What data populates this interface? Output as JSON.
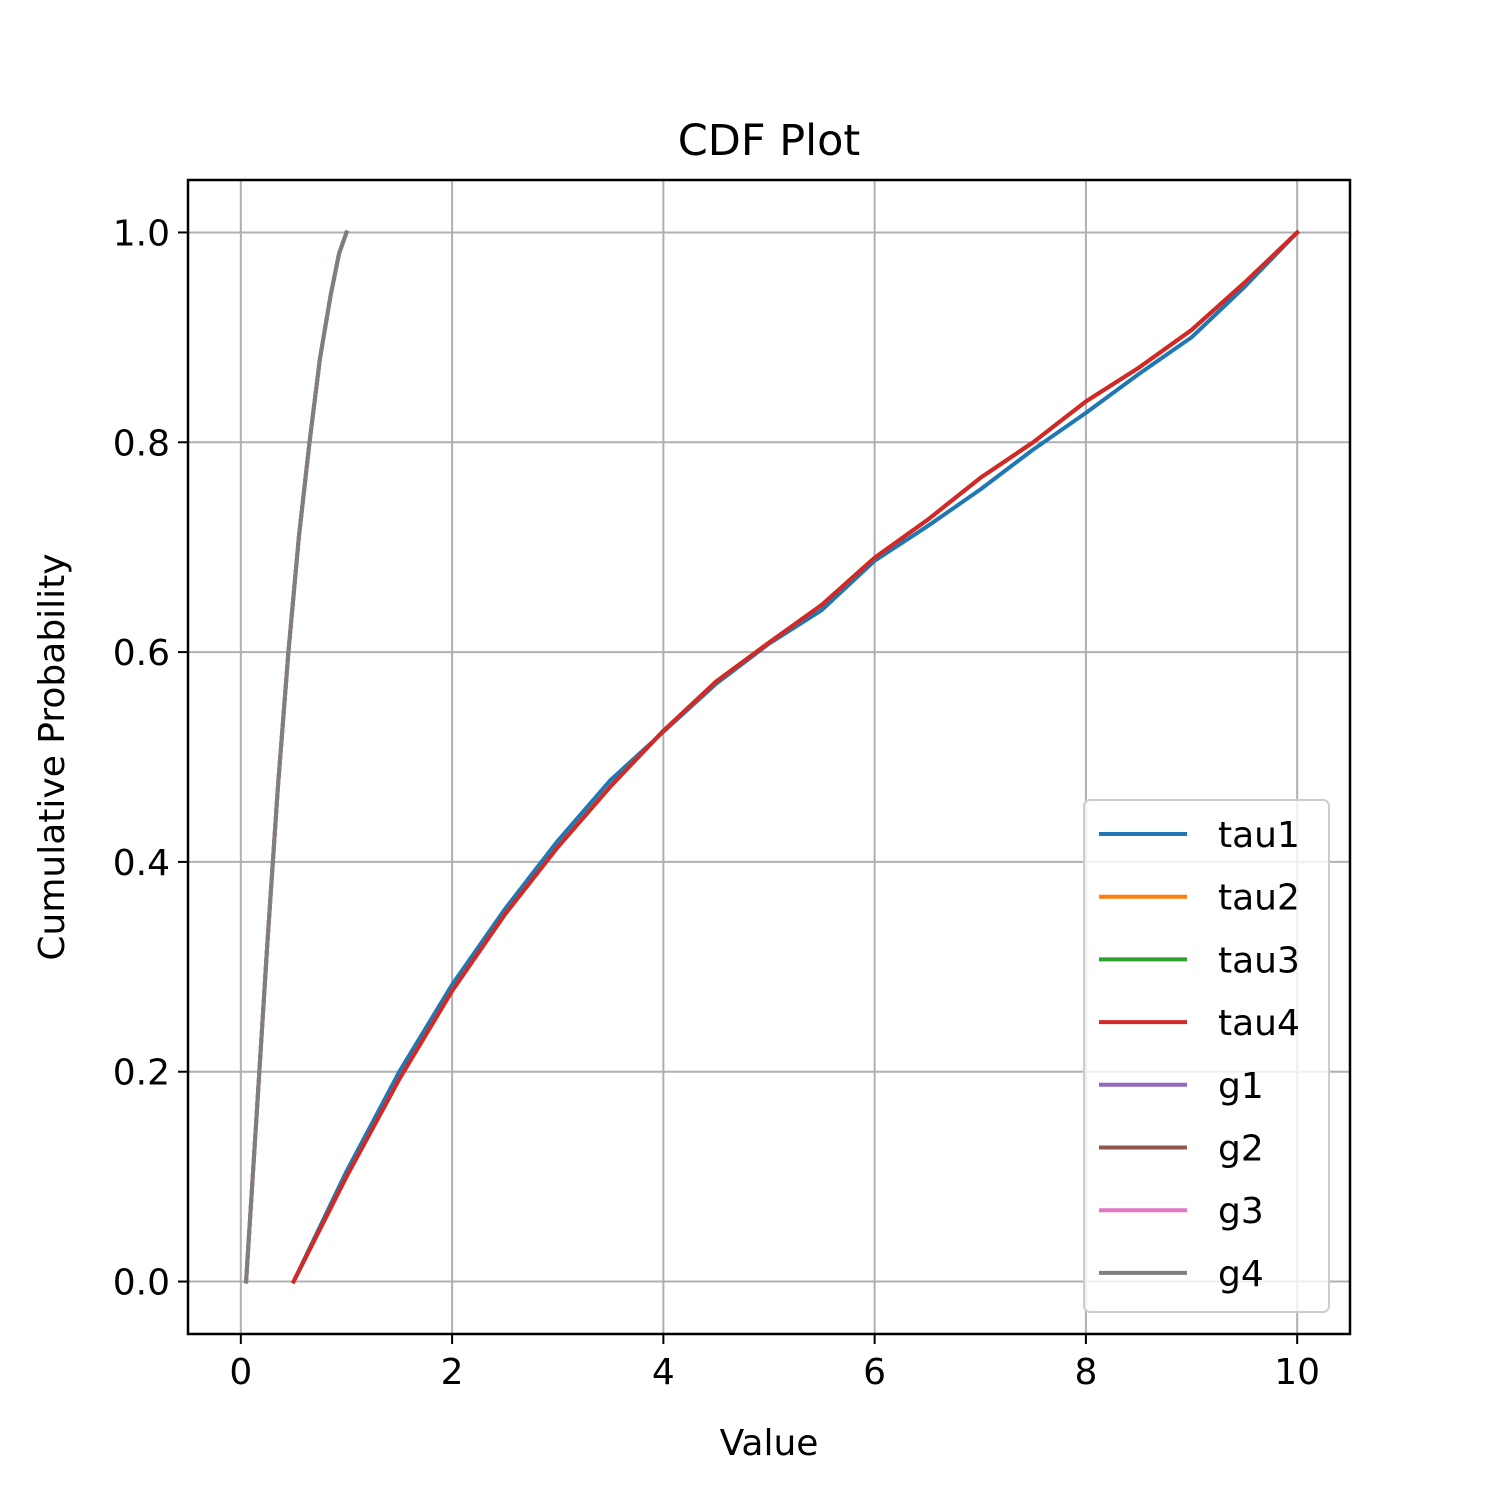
{
  "chart_data": {
    "type": "line",
    "title": "CDF Plot",
    "xlabel": "Value",
    "ylabel": "Cumulative Probability",
    "xlim": [
      -0.5,
      10.5
    ],
    "ylim": [
      -0.05,
      1.05
    ],
    "xticks": [
      0,
      2,
      4,
      6,
      8,
      10
    ],
    "yticks": [
      0.0,
      0.2,
      0.4,
      0.6,
      0.8,
      1.0
    ],
    "xtick_labels": [
      "0",
      "2",
      "4",
      "6",
      "8",
      "10"
    ],
    "ytick_labels": [
      "0.0",
      "0.2",
      "0.4",
      "0.6",
      "0.8",
      "1.0"
    ],
    "grid": true,
    "legend_position": "lower-right",
    "series": [
      {
        "name": "tau1",
        "color": "#1f77b4",
        "x": [
          0.5,
          1.0,
          1.5,
          2.0,
          2.5,
          3.0,
          3.5,
          4.0,
          4.5,
          5.0,
          5.5,
          6.0,
          6.5,
          7.0,
          7.5,
          8.0,
          8.5,
          9.0,
          9.5,
          10.0
        ],
        "y": [
          0.0,
          0.105,
          0.2,
          0.283,
          0.355,
          0.42,
          0.478,
          0.524,
          0.57,
          0.608,
          0.64,
          0.687,
          0.72,
          0.755,
          0.793,
          0.828,
          0.865,
          0.9,
          0.948,
          1.0
        ]
      },
      {
        "name": "tau2",
        "color": "#ff7f0e",
        "x": [
          0.5,
          1.0,
          1.5,
          2.0,
          2.5,
          3.0,
          3.5,
          4.0,
          4.5,
          5.0,
          5.5,
          6.0,
          6.5,
          7.0,
          7.5,
          8.0,
          8.5,
          9.0,
          9.5,
          10.0
        ],
        "y": [
          0.0,
          0.1,
          0.193,
          0.277,
          0.35,
          0.414,
          0.472,
          0.525,
          0.572,
          0.609,
          0.645,
          0.69,
          0.726,
          0.766,
          0.8,
          0.839,
          0.871,
          0.907,
          0.952,
          1.0
        ]
      },
      {
        "name": "tau3",
        "color": "#2ca02c",
        "x": [
          0.5,
          1.0,
          1.5,
          2.0,
          2.5,
          3.0,
          3.5,
          4.0,
          4.5,
          5.0,
          5.5,
          6.0,
          6.5,
          7.0,
          7.5,
          8.0,
          8.5,
          9.0,
          9.5,
          10.0
        ],
        "y": [
          0.0,
          0.1,
          0.193,
          0.277,
          0.35,
          0.414,
          0.472,
          0.525,
          0.572,
          0.609,
          0.645,
          0.69,
          0.726,
          0.766,
          0.8,
          0.839,
          0.871,
          0.907,
          0.952,
          1.0
        ]
      },
      {
        "name": "tau4",
        "color": "#d62728",
        "x": [
          0.5,
          1.0,
          1.5,
          2.0,
          2.5,
          3.0,
          3.5,
          4.0,
          4.5,
          5.0,
          5.5,
          6.0,
          6.5,
          7.0,
          7.5,
          8.0,
          8.5,
          9.0,
          9.5,
          10.0
        ],
        "y": [
          0.0,
          0.1,
          0.193,
          0.277,
          0.35,
          0.414,
          0.472,
          0.525,
          0.572,
          0.609,
          0.645,
          0.69,
          0.726,
          0.766,
          0.8,
          0.839,
          0.871,
          0.907,
          0.952,
          1.0
        ]
      },
      {
        "name": "g1",
        "color": "#9467bd",
        "x": [
          0.05,
          0.15,
          0.25,
          0.35,
          0.45,
          0.55,
          0.65,
          0.75,
          0.85,
          0.93,
          1.0
        ],
        "y": [
          0.0,
          0.16,
          0.32,
          0.47,
          0.6,
          0.71,
          0.8,
          0.88,
          0.94,
          0.98,
          1.0
        ]
      },
      {
        "name": "g2",
        "color": "#8c564b",
        "x": [
          0.05,
          0.15,
          0.25,
          0.35,
          0.45,
          0.55,
          0.65,
          0.75,
          0.85,
          0.93,
          1.0
        ],
        "y": [
          0.0,
          0.16,
          0.32,
          0.47,
          0.6,
          0.71,
          0.8,
          0.88,
          0.94,
          0.98,
          1.0
        ]
      },
      {
        "name": "g3",
        "color": "#e377c2",
        "x": [
          0.05,
          0.15,
          0.25,
          0.35,
          0.45,
          0.55,
          0.65,
          0.75,
          0.85,
          0.93,
          1.0
        ],
        "y": [
          0.0,
          0.16,
          0.32,
          0.47,
          0.6,
          0.71,
          0.8,
          0.88,
          0.94,
          0.98,
          1.0
        ]
      },
      {
        "name": "g4",
        "color": "#7f7f7f",
        "x": [
          0.05,
          0.15,
          0.25,
          0.35,
          0.45,
          0.55,
          0.65,
          0.75,
          0.85,
          0.93,
          1.0
        ],
        "y": [
          0.0,
          0.16,
          0.32,
          0.47,
          0.6,
          0.71,
          0.8,
          0.88,
          0.94,
          0.98,
          1.0
        ]
      }
    ]
  }
}
